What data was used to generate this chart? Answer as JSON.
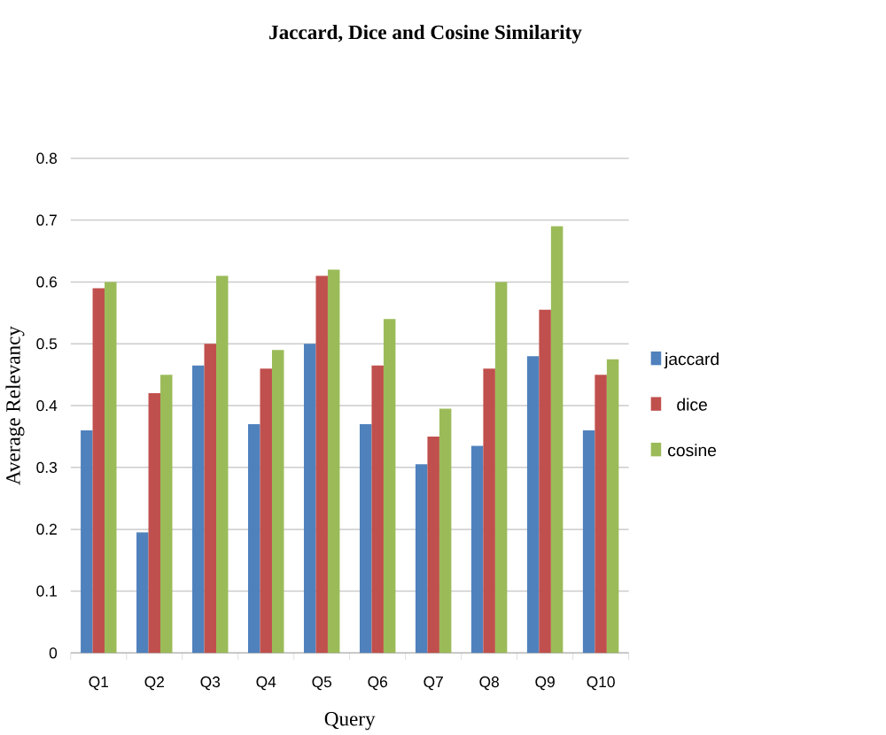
{
  "chart_data": {
    "type": "bar",
    "title": "Jaccard, Dice and Cosine Similarity",
    "xlabel": "Query",
    "ylabel": "Average Relevancy",
    "categories": [
      "Q1",
      "Q2",
      "Q3",
      "Q4",
      "Q5",
      "Q6",
      "Q7",
      "Q8",
      "Q9",
      "Q10"
    ],
    "series": [
      {
        "name": "jaccard",
        "color": "#4f81bd",
        "values": [
          0.36,
          0.195,
          0.465,
          0.37,
          0.5,
          0.37,
          0.305,
          0.335,
          0.48,
          0.36
        ]
      },
      {
        "name": "dice",
        "color": "#c0504d",
        "values": [
          0.59,
          0.42,
          0.5,
          0.46,
          0.61,
          0.465,
          0.35,
          0.46,
          0.555,
          0.45
        ]
      },
      {
        "name": "cosine",
        "color": "#9bbb59",
        "values": [
          0.6,
          0.45,
          0.61,
          0.49,
          0.62,
          0.54,
          0.395,
          0.6,
          0.69,
          0.475
        ]
      }
    ],
    "ylim": [
      0,
      0.8
    ],
    "yticks": [
      0,
      0.1,
      0.2,
      0.3,
      0.4,
      0.5,
      0.6,
      0.7,
      0.8
    ],
    "grid": "y",
    "legend": "right"
  }
}
